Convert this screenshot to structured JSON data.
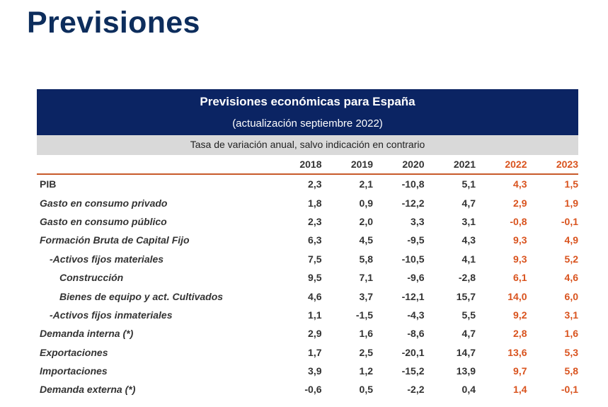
{
  "page": {
    "title": "Previsiones"
  },
  "table": {
    "title": "Previsiones económicas para España",
    "update_note": "(actualización septiembre 2022)",
    "unit_note": "Tasa de variación anual, salvo indicación en contrario",
    "highlight_color": "#d9531e",
    "banner_color": "#0b2463",
    "columns": [
      "2018",
      "2019",
      "2020",
      "2021",
      "2022",
      "2023"
    ],
    "rows": [
      {
        "label": "PIB",
        "values": [
          "2,3",
          "2,1",
          "-10,8",
          "5,1",
          "4,3",
          "1,5"
        ]
      },
      {
        "label": "Gasto en consumo privado",
        "values": [
          "1,8",
          "0,9",
          "-12,2",
          "4,7",
          "2,9",
          "1,9"
        ]
      },
      {
        "label": "Gasto en consumo público",
        "values": [
          "2,3",
          "2,0",
          "3,3",
          "3,1",
          "-0,8",
          "-0,1"
        ]
      },
      {
        "label": "Formación Bruta de Capital Fijo",
        "values": [
          "6,3",
          "4,5",
          "-9,5",
          "4,3",
          "9,3",
          "4,9"
        ]
      },
      {
        "label": "-Activos fijos materiales",
        "values": [
          "7,5",
          "5,8",
          "-10,5",
          "4,1",
          "9,3",
          "5,2"
        ]
      },
      {
        "label": "Construcción",
        "values": [
          "9,5",
          "7,1",
          "-9,6",
          "-2,8",
          "6,1",
          "4,6"
        ]
      },
      {
        "label": "Bienes de equipo y act. Cultivados",
        "values": [
          "4,6",
          "3,7",
          "-12,1",
          "15,7",
          "14,0",
          "6,0"
        ]
      },
      {
        "label": "-Activos fijos inmateriales",
        "values": [
          "1,1",
          "-1,5",
          "-4,3",
          "5,5",
          "9,2",
          "3,1"
        ]
      },
      {
        "label": "Demanda interna (*)",
        "values": [
          "2,9",
          "1,6",
          "-8,6",
          "4,7",
          "2,8",
          "1,6"
        ]
      },
      {
        "label": "Exportaciones",
        "values": [
          "1,7",
          "2,5",
          "-20,1",
          "14,7",
          "13,6",
          "5,3"
        ]
      },
      {
        "label": "Importaciones",
        "values": [
          "3,9",
          "1,2",
          "-15,2",
          "13,9",
          "9,7",
          "5,8"
        ]
      },
      {
        "label": "Demanda externa (*)",
        "values": [
          "-0,6",
          "0,5",
          "-2,2",
          "0,4",
          "1,4",
          "-0,1"
        ]
      }
    ]
  }
}
